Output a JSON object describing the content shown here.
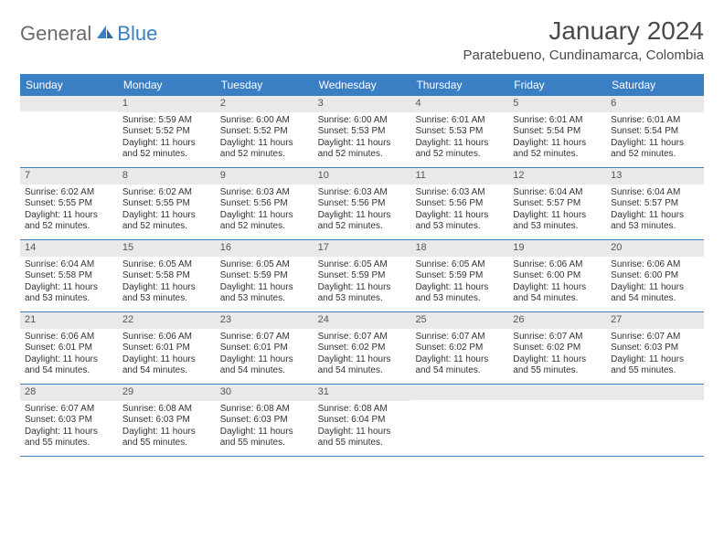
{
  "logo": {
    "text1": "General",
    "text2": "Blue"
  },
  "title": "January 2024",
  "location": "Paratebueno, Cundinamarca, Colombia",
  "colors": {
    "header_bg": "#3a7fc4",
    "header_text": "#ffffff",
    "daynum_bg": "#e9e9e9",
    "daynum_text": "#555555",
    "body_text": "#333333",
    "rule": "#3a7fc4",
    "page_bg": "#ffffff"
  },
  "typography": {
    "title_fontsize": 28,
    "location_fontsize": 15,
    "dayhead_fontsize": 12,
    "cell_fontsize": 10
  },
  "day_headers": [
    "Sunday",
    "Monday",
    "Tuesday",
    "Wednesday",
    "Thursday",
    "Friday",
    "Saturday"
  ],
  "weeks": [
    [
      {
        "empty": true
      },
      {
        "num": "1",
        "sunrise": "Sunrise: 5:59 AM",
        "sunset": "Sunset: 5:52 PM",
        "day1": "Daylight: 11 hours",
        "day2": "and 52 minutes."
      },
      {
        "num": "2",
        "sunrise": "Sunrise: 6:00 AM",
        "sunset": "Sunset: 5:52 PM",
        "day1": "Daylight: 11 hours",
        "day2": "and 52 minutes."
      },
      {
        "num": "3",
        "sunrise": "Sunrise: 6:00 AM",
        "sunset": "Sunset: 5:53 PM",
        "day1": "Daylight: 11 hours",
        "day2": "and 52 minutes."
      },
      {
        "num": "4",
        "sunrise": "Sunrise: 6:01 AM",
        "sunset": "Sunset: 5:53 PM",
        "day1": "Daylight: 11 hours",
        "day2": "and 52 minutes."
      },
      {
        "num": "5",
        "sunrise": "Sunrise: 6:01 AM",
        "sunset": "Sunset: 5:54 PM",
        "day1": "Daylight: 11 hours",
        "day2": "and 52 minutes."
      },
      {
        "num": "6",
        "sunrise": "Sunrise: 6:01 AM",
        "sunset": "Sunset: 5:54 PM",
        "day1": "Daylight: 11 hours",
        "day2": "and 52 minutes."
      }
    ],
    [
      {
        "num": "7",
        "sunrise": "Sunrise: 6:02 AM",
        "sunset": "Sunset: 5:55 PM",
        "day1": "Daylight: 11 hours",
        "day2": "and 52 minutes."
      },
      {
        "num": "8",
        "sunrise": "Sunrise: 6:02 AM",
        "sunset": "Sunset: 5:55 PM",
        "day1": "Daylight: 11 hours",
        "day2": "and 52 minutes."
      },
      {
        "num": "9",
        "sunrise": "Sunrise: 6:03 AM",
        "sunset": "Sunset: 5:56 PM",
        "day1": "Daylight: 11 hours",
        "day2": "and 52 minutes."
      },
      {
        "num": "10",
        "sunrise": "Sunrise: 6:03 AM",
        "sunset": "Sunset: 5:56 PM",
        "day1": "Daylight: 11 hours",
        "day2": "and 52 minutes."
      },
      {
        "num": "11",
        "sunrise": "Sunrise: 6:03 AM",
        "sunset": "Sunset: 5:56 PM",
        "day1": "Daylight: 11 hours",
        "day2": "and 53 minutes."
      },
      {
        "num": "12",
        "sunrise": "Sunrise: 6:04 AM",
        "sunset": "Sunset: 5:57 PM",
        "day1": "Daylight: 11 hours",
        "day2": "and 53 minutes."
      },
      {
        "num": "13",
        "sunrise": "Sunrise: 6:04 AM",
        "sunset": "Sunset: 5:57 PM",
        "day1": "Daylight: 11 hours",
        "day2": "and 53 minutes."
      }
    ],
    [
      {
        "num": "14",
        "sunrise": "Sunrise: 6:04 AM",
        "sunset": "Sunset: 5:58 PM",
        "day1": "Daylight: 11 hours",
        "day2": "and 53 minutes."
      },
      {
        "num": "15",
        "sunrise": "Sunrise: 6:05 AM",
        "sunset": "Sunset: 5:58 PM",
        "day1": "Daylight: 11 hours",
        "day2": "and 53 minutes."
      },
      {
        "num": "16",
        "sunrise": "Sunrise: 6:05 AM",
        "sunset": "Sunset: 5:59 PM",
        "day1": "Daylight: 11 hours",
        "day2": "and 53 minutes."
      },
      {
        "num": "17",
        "sunrise": "Sunrise: 6:05 AM",
        "sunset": "Sunset: 5:59 PM",
        "day1": "Daylight: 11 hours",
        "day2": "and 53 minutes."
      },
      {
        "num": "18",
        "sunrise": "Sunrise: 6:05 AM",
        "sunset": "Sunset: 5:59 PM",
        "day1": "Daylight: 11 hours",
        "day2": "and 53 minutes."
      },
      {
        "num": "19",
        "sunrise": "Sunrise: 6:06 AM",
        "sunset": "Sunset: 6:00 PM",
        "day1": "Daylight: 11 hours",
        "day2": "and 54 minutes."
      },
      {
        "num": "20",
        "sunrise": "Sunrise: 6:06 AM",
        "sunset": "Sunset: 6:00 PM",
        "day1": "Daylight: 11 hours",
        "day2": "and 54 minutes."
      }
    ],
    [
      {
        "num": "21",
        "sunrise": "Sunrise: 6:06 AM",
        "sunset": "Sunset: 6:01 PM",
        "day1": "Daylight: 11 hours",
        "day2": "and 54 minutes."
      },
      {
        "num": "22",
        "sunrise": "Sunrise: 6:06 AM",
        "sunset": "Sunset: 6:01 PM",
        "day1": "Daylight: 11 hours",
        "day2": "and 54 minutes."
      },
      {
        "num": "23",
        "sunrise": "Sunrise: 6:07 AM",
        "sunset": "Sunset: 6:01 PM",
        "day1": "Daylight: 11 hours",
        "day2": "and 54 minutes."
      },
      {
        "num": "24",
        "sunrise": "Sunrise: 6:07 AM",
        "sunset": "Sunset: 6:02 PM",
        "day1": "Daylight: 11 hours",
        "day2": "and 54 minutes."
      },
      {
        "num": "25",
        "sunrise": "Sunrise: 6:07 AM",
        "sunset": "Sunset: 6:02 PM",
        "day1": "Daylight: 11 hours",
        "day2": "and 54 minutes."
      },
      {
        "num": "26",
        "sunrise": "Sunrise: 6:07 AM",
        "sunset": "Sunset: 6:02 PM",
        "day1": "Daylight: 11 hours",
        "day2": "and 55 minutes."
      },
      {
        "num": "27",
        "sunrise": "Sunrise: 6:07 AM",
        "sunset": "Sunset: 6:03 PM",
        "day1": "Daylight: 11 hours",
        "day2": "and 55 minutes."
      }
    ],
    [
      {
        "num": "28",
        "sunrise": "Sunrise: 6:07 AM",
        "sunset": "Sunset: 6:03 PM",
        "day1": "Daylight: 11 hours",
        "day2": "and 55 minutes."
      },
      {
        "num": "29",
        "sunrise": "Sunrise: 6:08 AM",
        "sunset": "Sunset: 6:03 PM",
        "day1": "Daylight: 11 hours",
        "day2": "and 55 minutes."
      },
      {
        "num": "30",
        "sunrise": "Sunrise: 6:08 AM",
        "sunset": "Sunset: 6:03 PM",
        "day1": "Daylight: 11 hours",
        "day2": "and 55 minutes."
      },
      {
        "num": "31",
        "sunrise": "Sunrise: 6:08 AM",
        "sunset": "Sunset: 6:04 PM",
        "day1": "Daylight: 11 hours",
        "day2": "and 55 minutes."
      },
      {
        "empty": true
      },
      {
        "empty": true
      },
      {
        "empty": true
      }
    ]
  ]
}
